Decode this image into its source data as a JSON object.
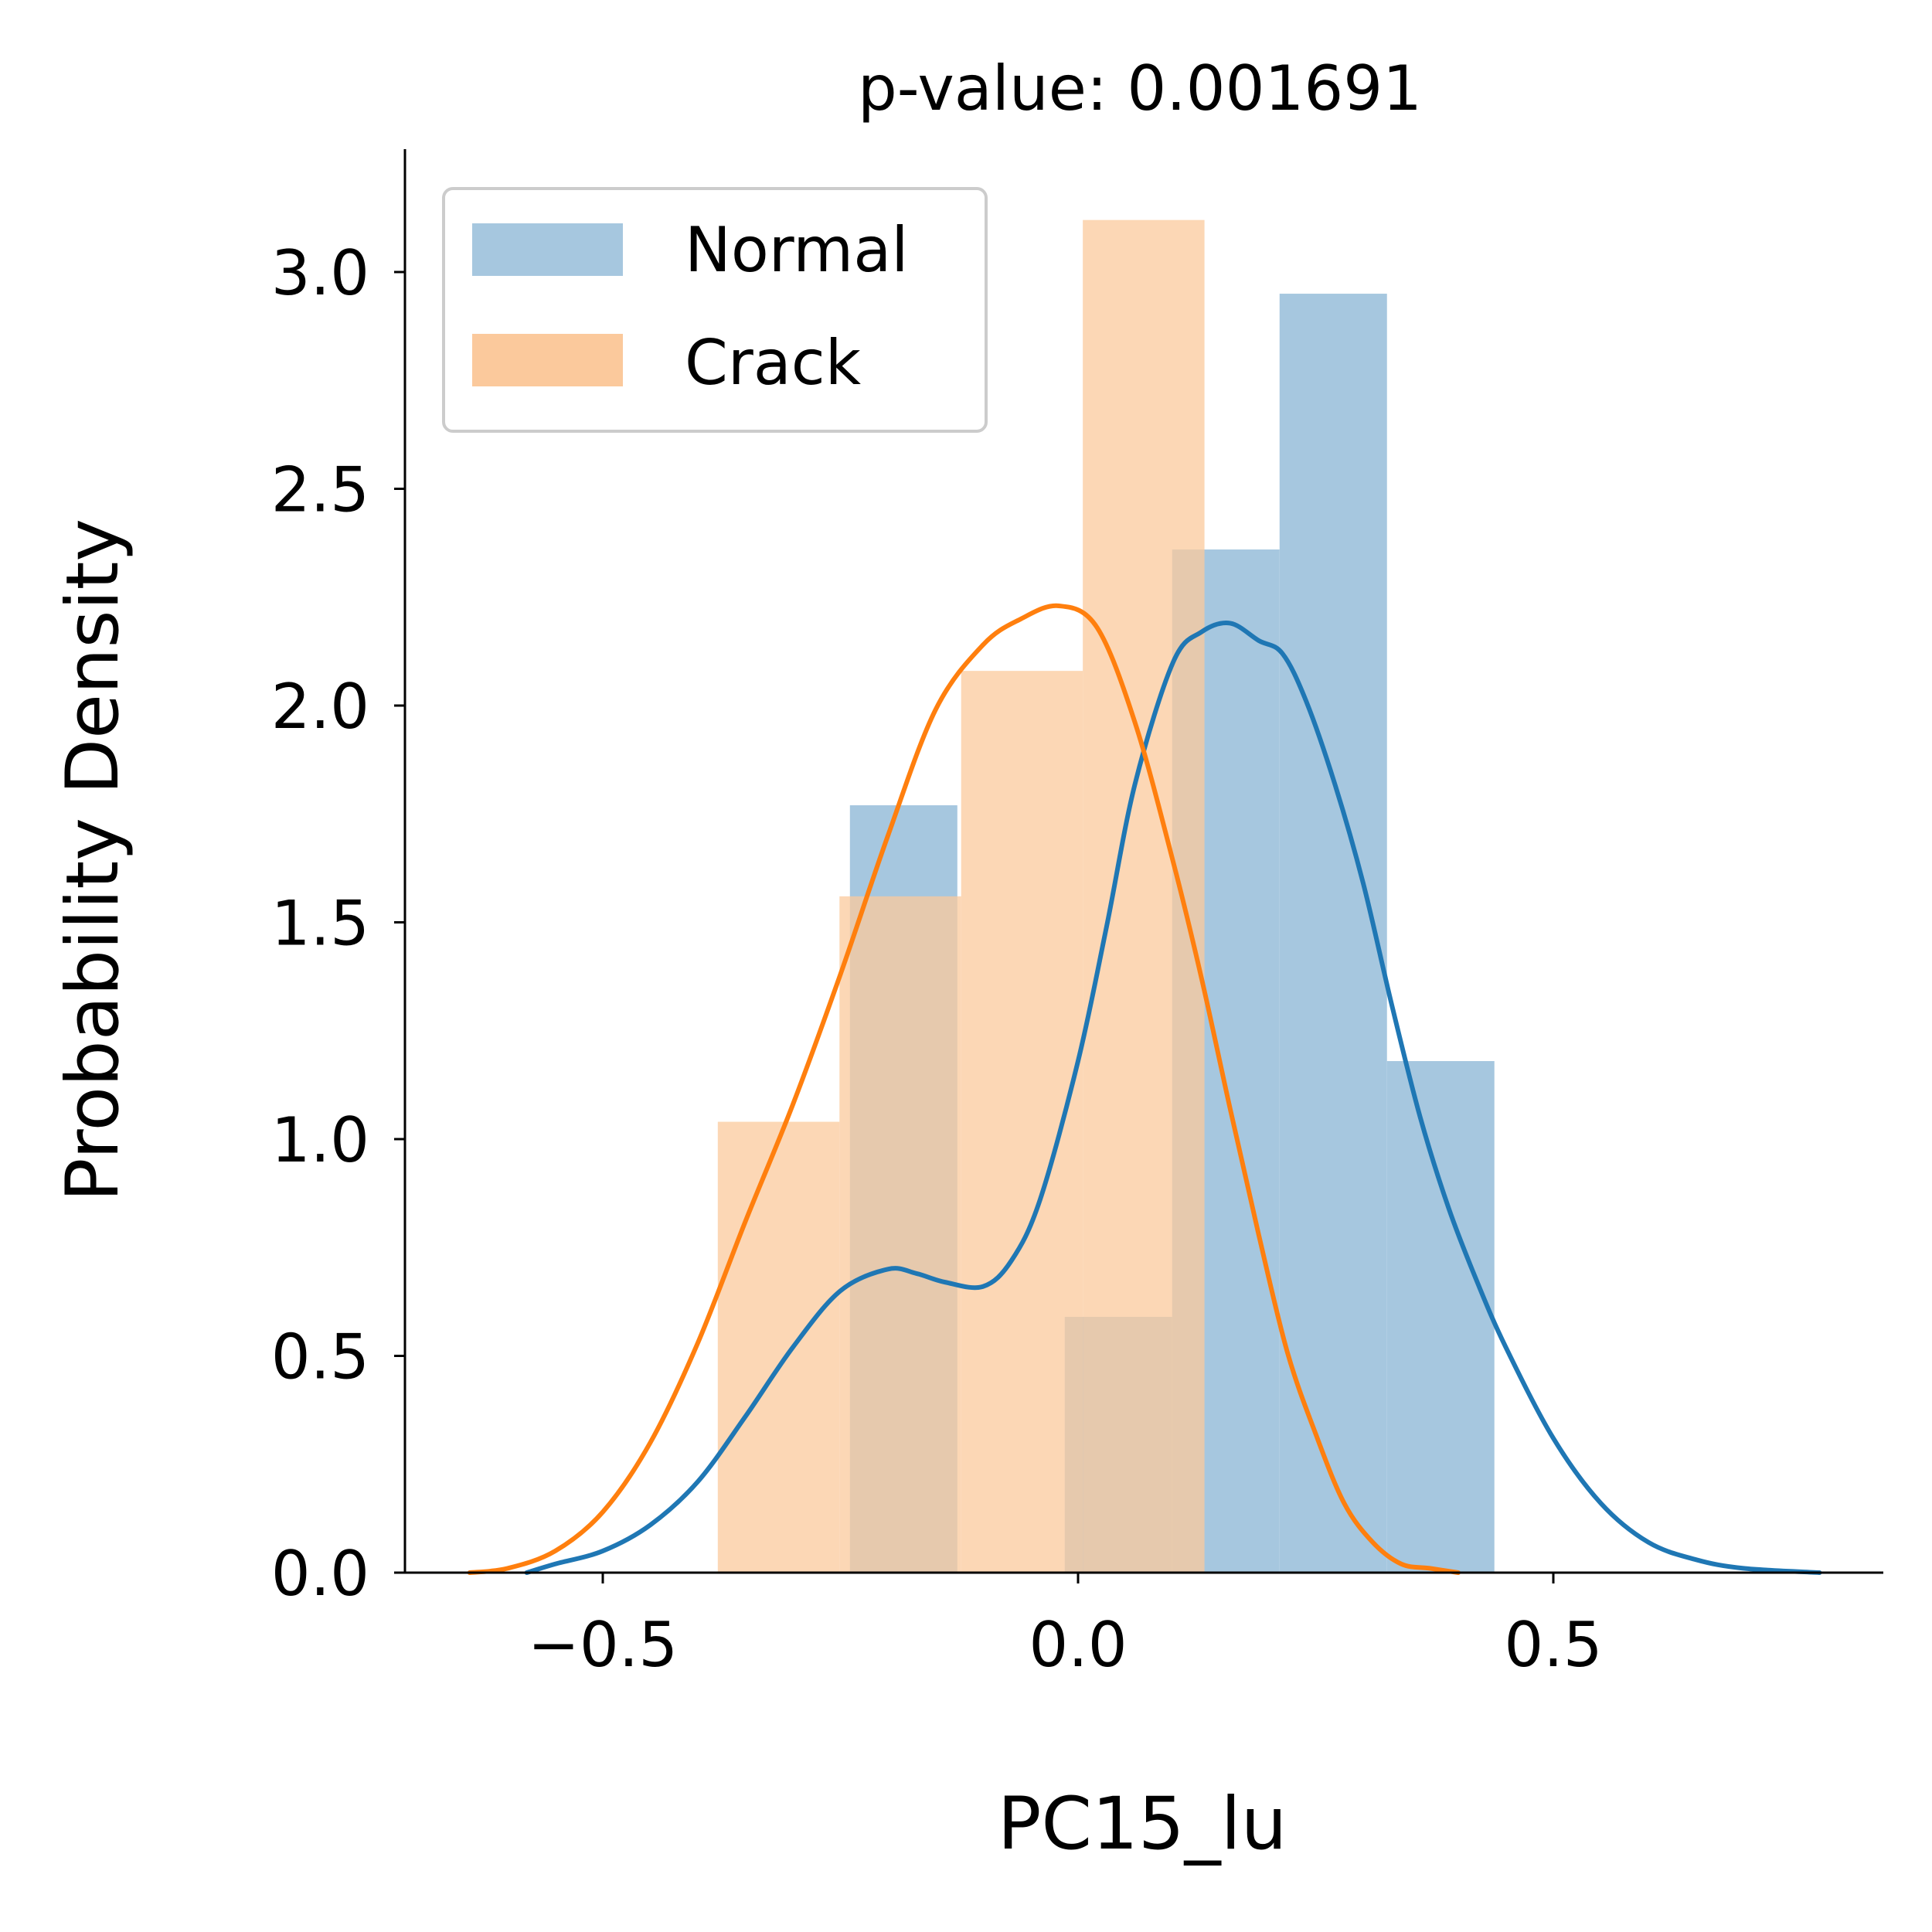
{
  "chart_data": {
    "type": "histogram",
    "title": "p-value: 0.001691",
    "xlabel": "PC15_lu",
    "ylabel": "Probability Density",
    "xlim": [
      -0.7,
      0.85
    ],
    "ylim": [
      0,
      3.28
    ],
    "xticks": [
      -0.5,
      0.0,
      0.5
    ],
    "xtick_labels": [
      "−0.5",
      "0.0",
      "0.5"
    ],
    "yticks": [
      0.0,
      0.5,
      1.0,
      1.5,
      2.0,
      2.5,
      3.0
    ],
    "ytick_labels": [
      "0.0",
      "0.5",
      "1.0",
      "1.5",
      "2.0",
      "2.5",
      "3.0"
    ],
    "legend_position": "upper-left",
    "legend": [
      "Normal",
      "Crack"
    ],
    "series": [
      {
        "name": "Normal",
        "hist_color": "#a6c7df",
        "line_color": "#1f77b4",
        "bins": [
          {
            "x0": -0.24,
            "x1": -0.127,
            "density": 1.77
          },
          {
            "x0": -0.127,
            "x1": -0.014,
            "density": 0.0
          },
          {
            "x0": -0.014,
            "x1": 0.099,
            "density": 0.59
          },
          {
            "x0": 0.099,
            "x1": 0.212,
            "density": 2.36
          },
          {
            "x0": 0.212,
            "x1": 0.325,
            "density": 2.95
          },
          {
            "x0": 0.325,
            "x1": 0.438,
            "density": 1.18
          }
        ],
        "kde": {
          "x": [
            -0.58,
            -0.55,
            -0.5,
            -0.45,
            -0.4,
            -0.35,
            -0.3,
            -0.25,
            -0.2,
            -0.17,
            -0.14,
            -0.1,
            -0.07,
            -0.04,
            0.0,
            0.03,
            0.06,
            0.1,
            0.13,
            0.16,
            0.19,
            0.215,
            0.24,
            0.27,
            0.3,
            0.33,
            0.36,
            0.39,
            0.42,
            0.45,
            0.5,
            0.55,
            0.6,
            0.65,
            0.7,
            0.78
          ],
          "y": [
            0.0,
            0.02,
            0.05,
            0.11,
            0.21,
            0.36,
            0.52,
            0.65,
            0.7,
            0.69,
            0.67,
            0.66,
            0.72,
            0.86,
            1.18,
            1.49,
            1.82,
            2.1,
            2.17,
            2.19,
            2.15,
            2.12,
            2.01,
            1.82,
            1.59,
            1.31,
            1.05,
            0.84,
            0.67,
            0.52,
            0.31,
            0.16,
            0.07,
            0.03,
            0.01,
            0.0
          ]
        }
      },
      {
        "name": "Crack",
        "hist_color": "#fbc99c",
        "line_color": "#ff7f0e",
        "bins": [
          {
            "x0": -0.379,
            "x1": -0.251,
            "density": 1.04
          },
          {
            "x0": -0.251,
            "x1": -0.123,
            "density": 1.56
          },
          {
            "x0": -0.123,
            "x1": 0.005,
            "density": 2.08
          },
          {
            "x0": 0.005,
            "x1": 0.133,
            "density": 3.12
          }
        ],
        "kde": {
          "x": [
            -0.64,
            -0.6,
            -0.55,
            -0.5,
            -0.45,
            -0.4,
            -0.35,
            -0.3,
            -0.25,
            -0.2,
            -0.15,
            -0.1,
            -0.06,
            -0.02,
            0.02,
            0.06,
            0.1,
            0.13,
            0.16,
            0.19,
            0.22,
            0.25,
            0.28,
            0.31,
            0.34,
            0.37,
            0.4
          ],
          "y": [
            0.0,
            0.01,
            0.05,
            0.14,
            0.3,
            0.53,
            0.81,
            1.08,
            1.38,
            1.7,
            1.99,
            2.14,
            2.2,
            2.23,
            2.18,
            1.96,
            1.64,
            1.37,
            1.07,
            0.78,
            0.51,
            0.32,
            0.16,
            0.07,
            0.02,
            0.01,
            0.0
          ]
        }
      }
    ]
  }
}
